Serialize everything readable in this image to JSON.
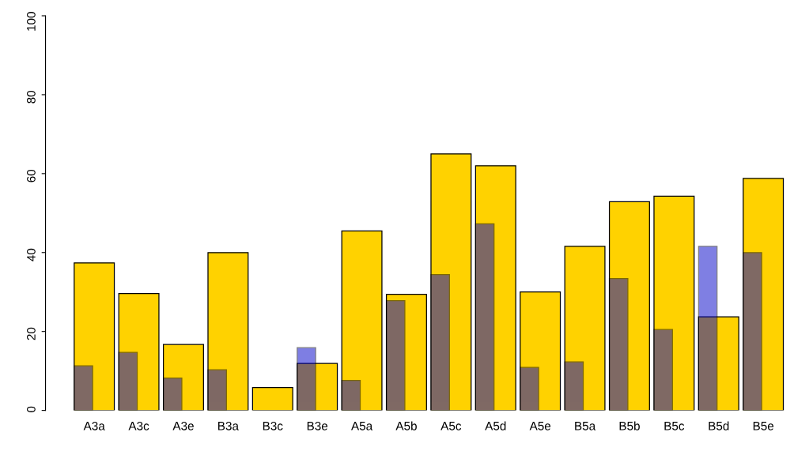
{
  "chart_data": {
    "type": "bar",
    "categories": [
      "A3a",
      "A3c",
      "A3e",
      "B3a",
      "B3c",
      "B3e",
      "A5a",
      "A5b",
      "A5c",
      "A5d",
      "A5e",
      "B5a",
      "B5b",
      "B5c",
      "B5d",
      "B5e"
    ],
    "series": [
      {
        "color": "#ffd200",
        "values": [
          37.4,
          29.6,
          16.7,
          40.0,
          5.8,
          11.9,
          45.5,
          29.4,
          65.0,
          62.0,
          30.0,
          41.6,
          52.9,
          54.3,
          23.7,
          58.8
        ]
      },
      {
        "color": "#0000c8",
        "values": [
          11.3,
          14.7,
          8.2,
          10.3,
          null,
          15.9,
          7.6,
          27.8,
          34.4,
          47.3,
          10.9,
          12.3,
          33.4,
          20.5,
          41.6,
          40.0
        ]
      }
    ],
    "ylim": [
      0,
      100
    ],
    "yticks": [
      0,
      20,
      40,
      60,
      80,
      100
    ],
    "grid": false,
    "legend": false
  }
}
